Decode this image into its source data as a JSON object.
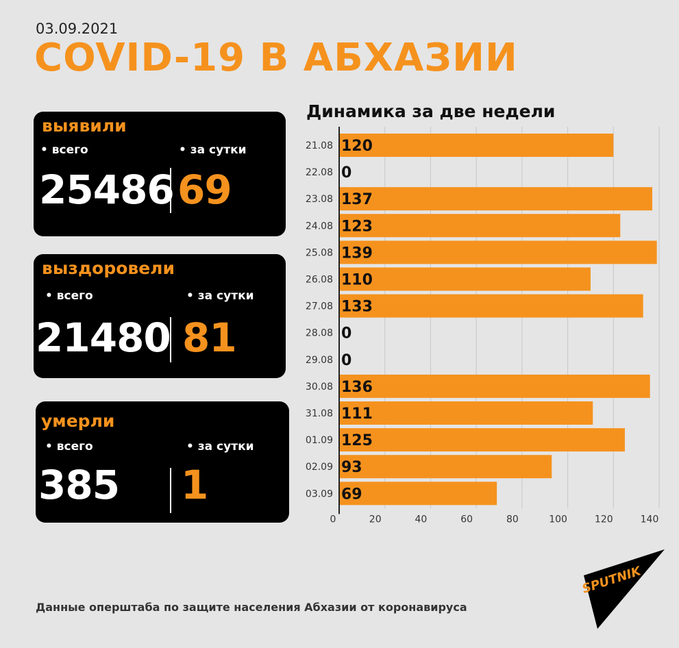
{
  "header": {
    "date": "03.09.2021",
    "title": "COVID-19 В АБХАЗИИ"
  },
  "cards": {
    "detected": {
      "label": "выявили",
      "total_label": "• всего",
      "daily_label": "• за сутки",
      "total": "25486",
      "daily": "69"
    },
    "recovered": {
      "label": "выздоровели",
      "total_label": "• всего",
      "daily_label": "• за сутки",
      "total": "21480",
      "daily": "81"
    },
    "died": {
      "label": "умерли",
      "total_label": "• всего",
      "daily_label": "• за сутки",
      "total": "385",
      "daily": "1"
    }
  },
  "chart_data": {
    "type": "bar",
    "orientation": "horizontal",
    "title": "Динамика за две недели",
    "categories": [
      "21.08",
      "22.08",
      "23.08",
      "24.08",
      "25.08",
      "26.08",
      "27.08",
      "28.08",
      "29.08",
      "30.08",
      "31.08",
      "01.09",
      "02.09",
      "03.09"
    ],
    "values": [
      120,
      0,
      137,
      123,
      139,
      110,
      133,
      0,
      0,
      136,
      111,
      125,
      93,
      69
    ],
    "xlim": [
      0,
      140
    ],
    "xticks": [
      0,
      20,
      40,
      60,
      80,
      100,
      120,
      140
    ],
    "grid": true,
    "bar_color": "#f5921e"
  },
  "footer": {
    "source": "Данные оперштаба по защите населения Абхазии от коронавируса"
  },
  "logo": {
    "text": "SPUTNIK"
  }
}
